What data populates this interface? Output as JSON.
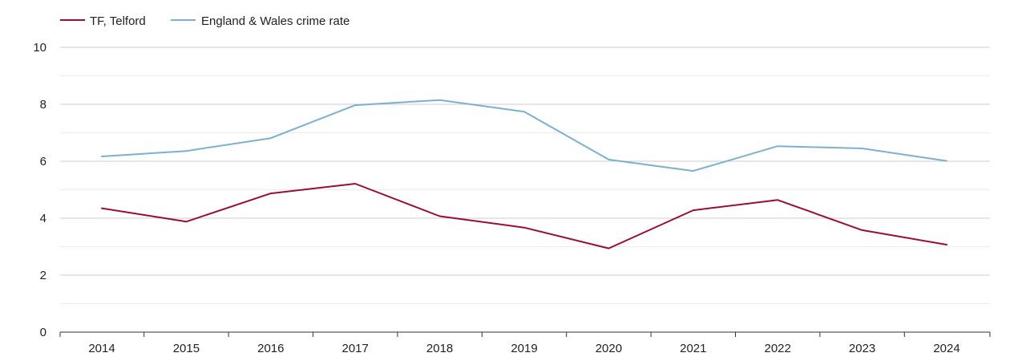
{
  "chart_data": {
    "type": "line",
    "title": "",
    "xlabel": "",
    "ylabel": "",
    "categories": [
      "2014",
      "2015",
      "2016",
      "2017",
      "2018",
      "2019",
      "2020",
      "2021",
      "2022",
      "2023",
      "2024"
    ],
    "ylim": [
      0,
      10
    ],
    "y_ticks": [
      0,
      2,
      4,
      6,
      8,
      10
    ],
    "y_tick_labels": [
      "0",
      "2",
      "4",
      "6",
      "8",
      "10"
    ],
    "grid": true,
    "legend_position": "top-left",
    "series": [
      {
        "name": "TF, Telford",
        "color": "#9b0d32",
        "values": [
          4.35,
          3.88,
          4.87,
          5.21,
          4.07,
          3.67,
          2.94,
          4.28,
          4.64,
          3.58,
          3.07
        ]
      },
      {
        "name": "England & Wales crime rate",
        "color": "#7ab0d0",
        "values": [
          6.17,
          6.36,
          6.81,
          7.97,
          8.15,
          7.74,
          6.06,
          5.66,
          6.53,
          6.45,
          6.01
        ]
      }
    ]
  }
}
